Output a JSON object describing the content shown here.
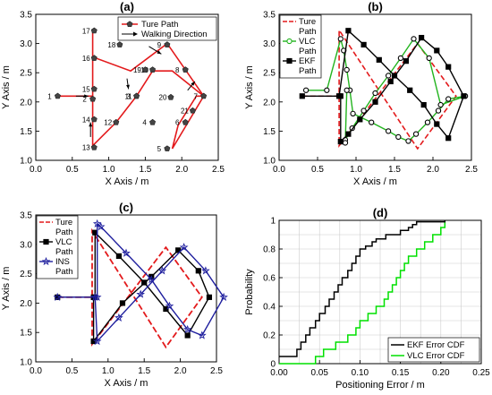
{
  "chart_data": [
    {
      "id": "a",
      "type": "line",
      "title": "(a)",
      "xlabel": "X Axis / m",
      "ylabel": "Y Axis / m",
      "xlim": [
        0,
        2.5
      ],
      "ylim": [
        1.0,
        3.5
      ],
      "xticks": [
        "0.0",
        "0.5",
        "1.0",
        "1.5",
        "2.0",
        "2.5"
      ],
      "yticks": [
        "1.0",
        "1.5",
        "2.0",
        "2.5",
        "3.0",
        "3.5"
      ],
      "legend": [
        "Ture Path",
        "Walking Direction"
      ],
      "legend_position": "top-right",
      "colors": {
        "path": "#e31a1c",
        "arrow": "#000000"
      },
      "series": [
        {
          "name": "Ture Path",
          "x": [
            0.3,
            0.78,
            0.78,
            0.78,
            0.78,
            0.78,
            1.3,
            1.8,
            2.3,
            1.87,
            1.87,
            1.95,
            2.2,
            2.3,
            1.87,
            1.8,
            1.6,
            1.38,
            1.1,
            0.78,
            0.78,
            0.78,
            0.78
          ],
          "y": [
            2.1,
            2.1,
            2.3,
            2.77,
            3.23,
            2.77,
            2.53,
            3.0,
            2.1,
            1.2,
            1.2,
            1.6,
            2.1,
            2.1,
            2.53,
            2.53,
            2.53,
            2.1,
            1.65,
            1.25,
            1.25,
            1.73,
            2.1
          ],
          "points": [
            {
              "label": "1",
              "x": 0.3,
              "y": 2.1
            },
            {
              "label": "2",
              "x": 0.78,
              "y": 2.05
            },
            {
              "label": "3",
              "x": 1.38,
              "y": 2.1
            },
            {
              "label": "4",
              "x": 1.6,
              "y": 1.65
            },
            {
              "label": "5",
              "x": 1.8,
              "y": 1.2
            },
            {
              "label": "6",
              "x": 2.05,
              "y": 1.65
            },
            {
              "label": "7",
              "x": 2.3,
              "y": 2.1
            },
            {
              "label": "8",
              "x": 2.05,
              "y": 2.55
            },
            {
              "label": "9",
              "x": 1.8,
              "y": 2.98
            },
            {
              "label": "10",
              "x": 1.6,
              "y": 2.55
            },
            {
              "label": "11",
              "x": 1.38,
              "y": 2.1
            },
            {
              "label": "12",
              "x": 1.1,
              "y": 1.65
            },
            {
              "label": "13",
              "x": 0.8,
              "y": 1.22
            },
            {
              "label": "14",
              "x": 0.8,
              "y": 1.7
            },
            {
              "label": "15",
              "x": 0.8,
              "y": 2.22
            },
            {
              "label": "16",
              "x": 0.8,
              "y": 2.75
            },
            {
              "label": "17",
              "x": 0.8,
              "y": 3.22
            },
            {
              "label": "18",
              "x": 1.15,
              "y": 2.98
            },
            {
              "label": "19",
              "x": 1.5,
              "y": 2.55
            },
            {
              "label": "20",
              "x": 1.85,
              "y": 2.08
            },
            {
              "label": "21",
              "x": 2.15,
              "y": 1.85
            }
          ]
        }
      ]
    },
    {
      "id": "b",
      "type": "line",
      "title": "(b)",
      "xlabel": "X Axis / m",
      "ylabel": "Y Axis / m",
      "xlim": [
        0,
        2.5
      ],
      "ylim": [
        1.0,
        3.5
      ],
      "xticks": [
        "0.0",
        "0.5",
        "1.0",
        "1.5",
        "2.0",
        "2.5"
      ],
      "yticks": [
        "1.0",
        "1.5",
        "2.0",
        "2.5",
        "3.0",
        "3.5"
      ],
      "legend": [
        "Ture",
        "Path",
        "VLC",
        "Path",
        "EKF",
        "Path"
      ],
      "legend_position": "top-left",
      "colors": {
        "true": "#e31a1c",
        "vlc": "#22b41e",
        "ekf": "#000000"
      },
      "series": [
        {
          "name": "Ture Path",
          "x": [
            0.3,
            0.78,
            0.78,
            1.8,
            2.3,
            1.8,
            0.78,
            0.78
          ],
          "y": [
            2.1,
            2.1,
            3.23,
            1.2,
            2.1,
            3.0,
            1.25,
            2.1
          ]
        },
        {
          "name": "VLC Path",
          "x": [
            0.35,
            0.62,
            0.8,
            0.84,
            0.88,
            0.92,
            0.96,
            1.2,
            1.42,
            1.55,
            1.68,
            1.78,
            1.93,
            2.07,
            2.2,
            2.42,
            2.1,
            1.95,
            1.75,
            1.58,
            1.42,
            1.25,
            1.1,
            0.95,
            0.86,
            0.86,
            0.88
          ],
          "y": [
            2.2,
            2.2,
            3.08,
            2.88,
            2.55,
            2.2,
            1.8,
            1.65,
            1.5,
            1.4,
            1.33,
            1.45,
            1.65,
            1.85,
            2.05,
            2.1,
            1.95,
            2.75,
            3.08,
            2.75,
            2.45,
            2.15,
            1.85,
            1.55,
            1.35,
            1.3,
            2.2
          ]
        },
        {
          "name": "EKF Path",
          "x": [
            0.3,
            0.78,
            0.9,
            1.1,
            1.3,
            1.5,
            1.7,
            1.88,
            2.05,
            2.2,
            2.4,
            2.2,
            2.05,
            1.85,
            1.65,
            1.45,
            1.25,
            1.05,
            0.9,
            0.8,
            0.8
          ],
          "y": [
            2.1,
            2.1,
            3.22,
            2.98,
            2.72,
            2.45,
            2.2,
            1.95,
            1.62,
            1.38,
            2.1,
            2.6,
            2.88,
            3.1,
            2.7,
            2.35,
            2.0,
            1.7,
            1.45,
            1.32,
            2.1
          ]
        }
      ]
    },
    {
      "id": "c",
      "type": "line",
      "title": "(c)",
      "xlabel": "X Axis / m",
      "ylabel": "Y Axis / m",
      "xlim": [
        0,
        2.5
      ],
      "ylim": [
        1.0,
        3.5
      ],
      "xticks": [
        "0.0",
        "0.5",
        "1.0",
        "1.5",
        "2.0",
        "2.5"
      ],
      "yticks": [
        "1.0",
        "1.5",
        "2.0",
        "2.5",
        "3.0",
        "3.5"
      ],
      "legend": [
        "Ture",
        "Path",
        "VLC",
        "Path",
        "INS",
        "Path"
      ],
      "legend_position": "top-left",
      "colors": {
        "true": "#e31a1c",
        "vlc": "#000000",
        "ins": "#1f1f9e"
      },
      "series": [
        {
          "name": "Ture Path",
          "x": [
            0.3,
            0.78,
            0.78,
            1.8,
            2.3,
            1.8,
            0.78,
            0.78
          ],
          "y": [
            2.1,
            2.1,
            3.23,
            1.25,
            2.1,
            2.95,
            1.3,
            2.1
          ]
        },
        {
          "name": "VLC Path",
          "x": [
            0.3,
            0.82,
            0.82,
            1.15,
            1.5,
            1.8,
            2.1,
            2.4,
            2.25,
            1.97,
            1.6,
            1.2,
            0.8,
            0.8
          ],
          "y": [
            2.1,
            2.1,
            3.2,
            2.8,
            2.35,
            1.9,
            1.45,
            2.1,
            2.55,
            2.9,
            2.45,
            2.0,
            1.35,
            2.1
          ]
        },
        {
          "name": "INS Path",
          "x": [
            0.3,
            0.85,
            0.85,
            0.9,
            1.25,
            1.6,
            1.85,
            2.1,
            2.3,
            2.6,
            2.35,
            2.05,
            1.75,
            1.45,
            1.15,
            0.85,
            0.82
          ],
          "y": [
            2.1,
            2.1,
            3.35,
            3.3,
            2.85,
            2.4,
            1.95,
            1.55,
            1.45,
            2.1,
            2.55,
            2.95,
            2.55,
            2.15,
            1.75,
            1.35,
            2.1
          ]
        }
      ]
    },
    {
      "id": "d",
      "type": "line",
      "title": "(d)",
      "xlabel": "Positioning Error / m",
      "ylabel": "Probability",
      "xlim": [
        0,
        0.25
      ],
      "ylim": [
        0,
        1
      ],
      "xticks": [
        "0.00",
        "0.05",
        "0.10",
        "0.15",
        "0.20",
        "0.25"
      ],
      "yticks": [
        "0",
        "0.2",
        "0.4",
        "0.6",
        "0.8",
        "1"
      ],
      "grid": true,
      "legend": [
        "EKF Error CDF",
        "VLC Error CDF"
      ],
      "legend_position": "bottom-right",
      "colors": {
        "ekf": "#000000",
        "vlc": "#00e000"
      },
      "series": [
        {
          "name": "EKF Error CDF",
          "x": [
            0.0,
            0.012,
            0.022,
            0.027,
            0.033,
            0.038,
            0.045,
            0.05,
            0.057,
            0.062,
            0.068,
            0.073,
            0.078,
            0.085,
            0.09,
            0.095,
            0.1,
            0.107,
            0.115,
            0.12,
            0.126,
            0.132,
            0.142,
            0.15,
            0.16,
            0.165,
            0.17,
            0.205
          ],
          "y": [
            0.05,
            0.05,
            0.1,
            0.15,
            0.2,
            0.25,
            0.3,
            0.35,
            0.4,
            0.45,
            0.5,
            0.55,
            0.6,
            0.65,
            0.7,
            0.75,
            0.8,
            0.82,
            0.85,
            0.87,
            0.87,
            0.9,
            0.9,
            0.93,
            0.95,
            0.97,
            0.99,
            1.0
          ]
        },
        {
          "name": "VLC Error CDF",
          "x": [
            0.0,
            0.04,
            0.045,
            0.055,
            0.07,
            0.085,
            0.095,
            0.1,
            0.11,
            0.12,
            0.13,
            0.135,
            0.14,
            0.145,
            0.15,
            0.155,
            0.16,
            0.17,
            0.18,
            0.19,
            0.2,
            0.205
          ],
          "y": [
            0.0,
            0.0,
            0.05,
            0.1,
            0.15,
            0.2,
            0.25,
            0.3,
            0.35,
            0.4,
            0.45,
            0.5,
            0.55,
            0.6,
            0.65,
            0.7,
            0.75,
            0.8,
            0.85,
            0.9,
            0.95,
            1.0
          ]
        }
      ]
    }
  ]
}
